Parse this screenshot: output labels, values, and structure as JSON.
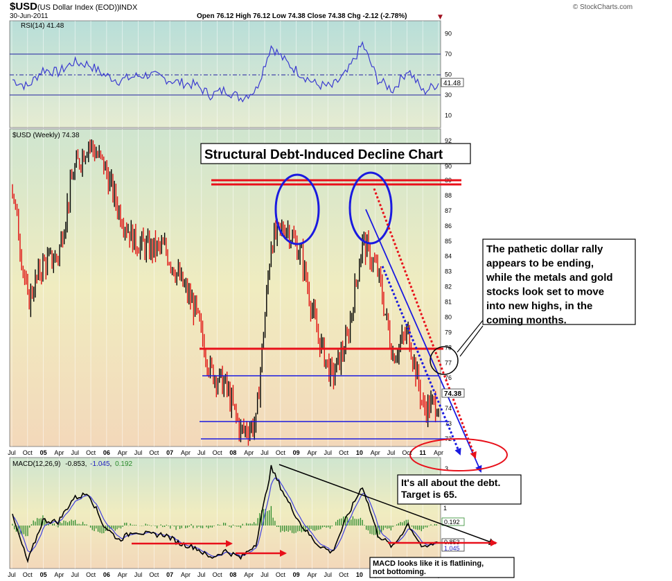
{
  "header": {
    "symbol": "$USD",
    "name": "(US Dollar Index (EOD))",
    "exchange": "INDX",
    "date": "30-Jun-2011",
    "brand": "© StockCharts.com",
    "ohlc_text": "Open 76.12  High 76.12  Low 74.38  Close 74.38  Chg -2.12 (-2.78%)",
    "chg_marker": "▼"
  },
  "colors": {
    "rsi_line": "#3a3ad0",
    "price_up": "#000000",
    "price_down": "#e01010",
    "resistance": "#e8101a",
    "support": "#1a1ae0",
    "macd_line": "#000000",
    "signal_line": "#4040e0",
    "histogram": "#2a8a2a",
    "annotation_box": "#000000"
  },
  "rsi_panel": {
    "label": "RSI(14) 41.48",
    "value_tag": "41.48",
    "ticks": [
      "90",
      "70",
      "50",
      "30",
      "10"
    ]
  },
  "price_panel": {
    "label": "$USD (Weekly) 74.38",
    "value_tag": "74.38",
    "ticks": [
      "92",
      "90",
      "89",
      "88",
      "87",
      "86",
      "85",
      "84",
      "83",
      "82",
      "81",
      "80",
      "79",
      "78",
      "77",
      "76",
      "75",
      "74",
      "73",
      "72",
      "3"
    ]
  },
  "macd_panel": {
    "label_prefix": "MACD(12,26,9)",
    "macd_value": "-0.853",
    "signal_value": "-1.045",
    "hist_value": "0.192",
    "ticks": [
      "1"
    ],
    "value_tags": [
      "0.192",
      "0.853",
      "1.045"
    ]
  },
  "x_axis": {
    "labels": [
      "Jul",
      "Oct",
      "05",
      "Apr",
      "Jul",
      "Oct",
      "06",
      "Apr",
      "Jul",
      "Oct",
      "07",
      "Apr",
      "Jul",
      "Oct",
      "08",
      "Apr",
      "Jul",
      "Oct",
      "09",
      "Apr",
      "Jul",
      "Oct",
      "10",
      "Apr",
      "Jul",
      "Oct",
      "11",
      "Apr"
    ]
  },
  "annotations": {
    "title": "Structural Debt-Induced Decline Chart",
    "rally_note": "The pathetic dollar rally appears to be ending, while the metals and gold stocks look set to move into new highs, in the coming months.",
    "debt_note": "It's all about the debt. Target is 65.",
    "macd_note": "MACD looks like it is flatlining, not bottoming."
  },
  "chart_data": {
    "type": "line",
    "title": "$USD (Weekly)",
    "x": [
      "2004-07",
      "2004-10",
      "2005-01",
      "2005-04",
      "2005-07",
      "2005-10",
      "2006-01",
      "2006-04",
      "2006-07",
      "2006-10",
      "2007-01",
      "2007-04",
      "2007-07",
      "2007-10",
      "2008-01",
      "2008-04",
      "2008-07",
      "2008-10",
      "2009-01",
      "2009-04",
      "2009-07",
      "2009-10",
      "2010-01",
      "2010-04",
      "2010-07",
      "2010-10",
      "2011-01",
      "2011-04",
      "2011-06"
    ],
    "series": [
      {
        "name": "$USD",
        "values": [
          88.5,
          81.0,
          83.5,
          84.0,
          89.5,
          91.5,
          90.0,
          87.0,
          85.0,
          84.5,
          84.5,
          82.5,
          80.5,
          76.5,
          75.5,
          72.5,
          73.0,
          85.0,
          86.0,
          84.0,
          79.0,
          76.0,
          78.5,
          85.0,
          83.0,
          77.5,
          79.0,
          74.0,
          74.38
        ]
      },
      {
        "name": "RSI(14)",
        "values": [
          45,
          38,
          55,
          52,
          62,
          60,
          50,
          44,
          48,
          50,
          46,
          42,
          40,
          30,
          35,
          27,
          35,
          78,
          62,
          50,
          40,
          38,
          52,
          80,
          45,
          35,
          55,
          33,
          41.48
        ]
      },
      {
        "name": "MACD(12,26,9)",
        "values": [
          0.5,
          -2.0,
          0.3,
          0.2,
          1.5,
          1.8,
          0.0,
          -0.8,
          -0.3,
          -0.5,
          -0.5,
          -1.0,
          -1.2,
          -1.8,
          -1.4,
          -1.8,
          -1.0,
          3.2,
          1.5,
          0.0,
          -1.0,
          -1.5,
          0.5,
          2.2,
          -0.5,
          -1.2,
          0.1,
          -1.3,
          -0.853
        ]
      }
    ],
    "ylim": [
      71.5,
      92.5
    ],
    "support_levels": [
      75.5,
      73.0,
      72.0
    ],
    "resistance_levels": [
      89.0,
      77.0
    ],
    "target": 65,
    "grid": true
  }
}
